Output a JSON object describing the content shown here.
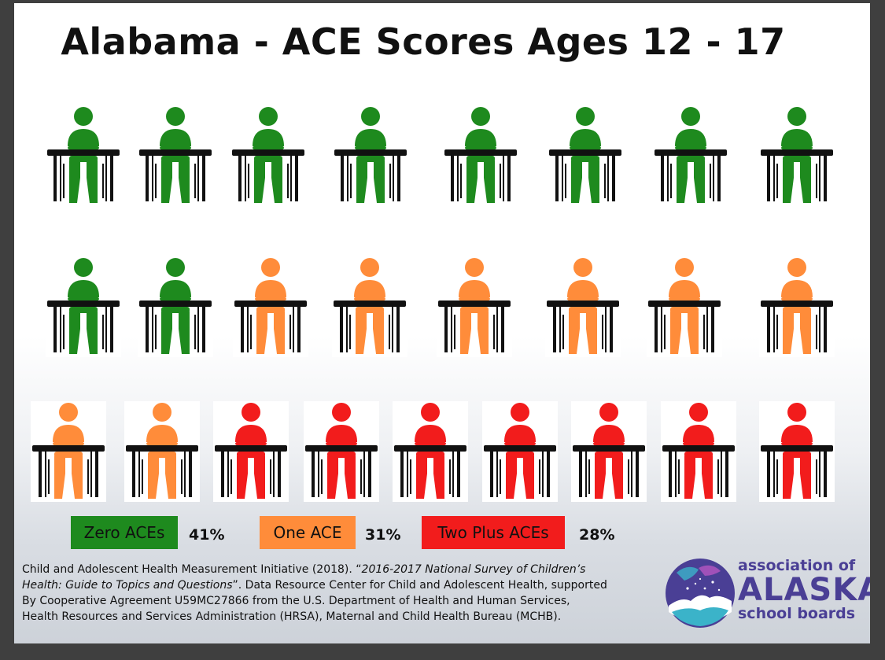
{
  "title": "Alabama - ACE Scores Ages 12 - 17",
  "colors": {
    "zero": "#1e8a1e",
    "one": "#ff8c3a",
    "two_plus": "#f21c1c",
    "desk": "#111111"
  },
  "figure_rows": [
    [
      "zero",
      "zero",
      "zero",
      "zero",
      "zero",
      "zero",
      "zero",
      "zero"
    ],
    [
      "zero",
      "zero",
      "one",
      "one",
      "one",
      "one",
      "one",
      "one"
    ],
    [
      "one",
      "one",
      "two_plus",
      "two_plus",
      "two_plus",
      "two_plus",
      "two_plus",
      "two_plus",
      "two_plus"
    ]
  ],
  "figure_icon": "student-at-desk-icon",
  "legend": [
    {
      "key": "zero",
      "label": "Zero ACEs",
      "percent": "41%",
      "color": "#1e8a1e"
    },
    {
      "key": "one",
      "label": "One ACE",
      "percent": "31%",
      "color": "#ff8c3a"
    },
    {
      "key": "two_plus",
      "label": "Two Plus ACEs",
      "percent": "28%",
      "color": "#f21c1c"
    }
  ],
  "citation": {
    "line1_plain": "Child and Adolescent Health Measurement Initiative (2018). “",
    "line1_italic": "2016-2017 National Survey of Children’s",
    "line2_italic": "Health: Guide to Topics and Questions",
    "line2_plain": "”. Data Resource Center for Child and Adolescent Health, supported",
    "line3": "By Cooperative Agreement U59MC27866 from the U.S. Department of Health and Human Services,",
    "line4": "Health Resources and Services Administration (HRSA), Maternal and Child Health Bureau (MCHB)."
  },
  "logo": {
    "line1": "association of",
    "line2": "ALASKA",
    "line3": "school boards",
    "colors": {
      "purple": "#4a3f95",
      "teal": "#3bb3c9"
    }
  }
}
